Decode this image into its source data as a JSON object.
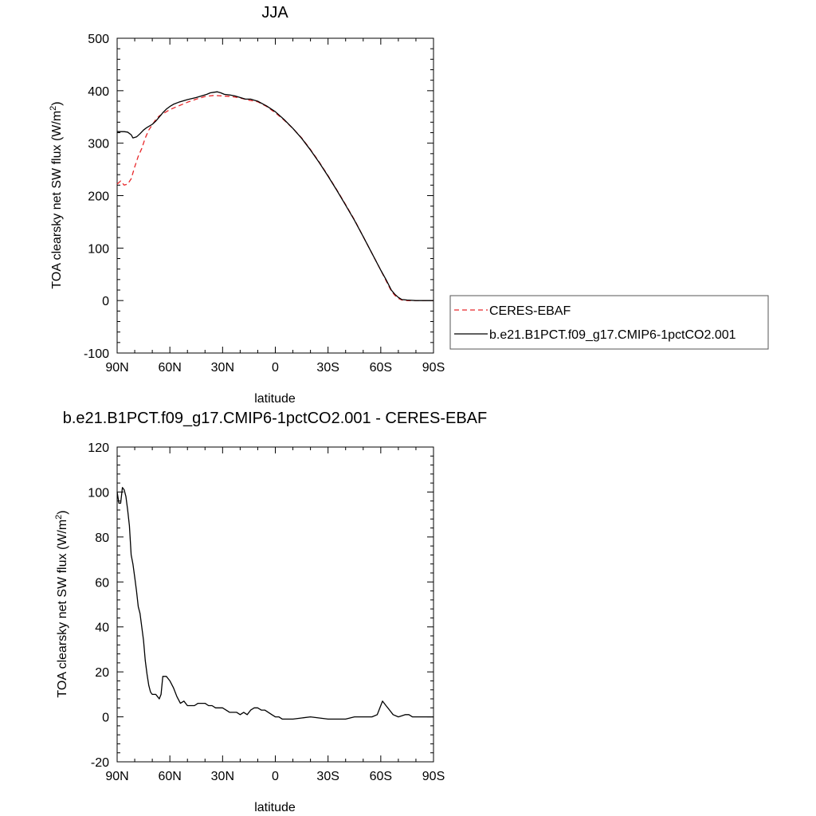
{
  "chart_data": [
    {
      "type": "line",
      "title": "JJA",
      "xlabel": "latitude",
      "ylabel": "TOA clearsky net SW flux (W/m²)",
      "ylabel_main": "TOA clearsky net SW flux (W/m",
      "ylabel_sup": "2",
      "ylabel_end": ")",
      "xlim": [
        90,
        -90
      ],
      "ylim": [
        -100,
        500
      ],
      "xticks": [
        {
          "value": 90,
          "label": "90N"
        },
        {
          "value": 60,
          "label": "60N"
        },
        {
          "value": 30,
          "label": "30N"
        },
        {
          "value": 0,
          "label": "0"
        },
        {
          "value": -30,
          "label": "30S"
        },
        {
          "value": -60,
          "label": "60S"
        },
        {
          "value": -90,
          "label": "90S"
        }
      ],
      "yticks": [
        {
          "value": 500,
          "label": "500"
        },
        {
          "value": 400,
          "label": "400"
        },
        {
          "value": 300,
          "label": "300"
        },
        {
          "value": 200,
          "label": "200"
        },
        {
          "value": 100,
          "label": "100"
        },
        {
          "value": 0,
          "label": "0"
        },
        {
          "value": -100,
          "label": "-100"
        }
      ],
      "legend": {
        "placement": "right",
        "entries": [
          {
            "label": "CERES-EBAF",
            "color": "#e8272a",
            "dash": "dashed"
          },
          {
            "label": "b.e21.B1PCT.f09_g17.CMIP6-1pctCO2.001",
            "color": "#000000",
            "dash": "solid"
          }
        ]
      },
      "series": [
        {
          "name": "CERES-EBAF",
          "color": "#e8272a",
          "style": "dashed",
          "points": [
            [
              90,
              222
            ],
            [
              88,
              228
            ],
            [
              86,
              220
            ],
            [
              84,
              222
            ],
            [
              82,
              232
            ],
            [
              80,
              255
            ],
            [
              78,
              275
            ],
            [
              76,
              290
            ],
            [
              74,
              310
            ],
            [
              72,
              325
            ],
            [
              70,
              335
            ],
            [
              68,
              345
            ],
            [
              66,
              352
            ],
            [
              64,
              356
            ],
            [
              62,
              360
            ],
            [
              60,
              364
            ],
            [
              55,
              371
            ],
            [
              50,
              378
            ],
            [
              45,
              384
            ],
            [
              40,
              389
            ],
            [
              35,
              391
            ],
            [
              30,
              390
            ],
            [
              25,
              389
            ],
            [
              20,
              386
            ],
            [
              15,
              382
            ],
            [
              10,
              379
            ],
            [
              5,
              370
            ],
            [
              0,
              358
            ],
            [
              -5,
              344
            ],
            [
              -10,
              328
            ],
            [
              -15,
              310
            ],
            [
              -20,
              288
            ],
            [
              -25,
              264
            ],
            [
              -30,
              238
            ],
            [
              -35,
              211
            ],
            [
              -40,
              183
            ],
            [
              -45,
              154
            ],
            [
              -50,
              122
            ],
            [
              -55,
              90
            ],
            [
              -60,
              58
            ],
            [
              -63,
              38
            ],
            [
              -66,
              18
            ],
            [
              -68,
              10
            ],
            [
              -70,
              4
            ],
            [
              -72,
              1
            ],
            [
              -75,
              0
            ],
            [
              -80,
              0
            ],
            [
              -85,
              0
            ],
            [
              -90,
              0
            ]
          ]
        },
        {
          "name": "b.e21.B1PCT.f09_g17.CMIP6-1pctCO2.001",
          "color": "#000000",
          "style": "solid",
          "points": [
            [
              90,
              322
            ],
            [
              86,
              322
            ],
            [
              84,
              321
            ],
            [
              82,
              316
            ],
            [
              81,
              310
            ],
            [
              79,
              312
            ],
            [
              77,
              318
            ],
            [
              75,
              325
            ],
            [
              73,
              330
            ],
            [
              70,
              336
            ],
            [
              68,
              342
            ],
            [
              66,
              350
            ],
            [
              64,
              358
            ],
            [
              62,
              365
            ],
            [
              60,
              370
            ],
            [
              58,
              374
            ],
            [
              55,
              378
            ],
            [
              50,
              383
            ],
            [
              45,
              387
            ],
            [
              42,
              390
            ],
            [
              39,
              393
            ],
            [
              37,
              396
            ],
            [
              35,
              397
            ],
            [
              33,
              398
            ],
            [
              31,
              396
            ],
            [
              29,
              393
            ],
            [
              26,
              392
            ],
            [
              23,
              390
            ],
            [
              20,
              387
            ],
            [
              17,
              384
            ],
            [
              14,
              384
            ],
            [
              12,
              382
            ],
            [
              10,
              380
            ],
            [
              5,
              371
            ],
            [
              0,
              360
            ],
            [
              -5,
              345
            ],
            [
              -10,
              328
            ],
            [
              -15,
              309
            ],
            [
              -20,
              287
            ],
            [
              -25,
              263
            ],
            [
              -30,
              237
            ],
            [
              -35,
              210
            ],
            [
              -40,
              182
            ],
            [
              -45,
              153
            ],
            [
              -50,
              122
            ],
            [
              -55,
              90
            ],
            [
              -60,
              58
            ],
            [
              -63,
              40
            ],
            [
              -66,
              20
            ],
            [
              -68,
              12
            ],
            [
              -70,
              6
            ],
            [
              -72,
              2
            ],
            [
              -75,
              1
            ],
            [
              -80,
              0
            ],
            [
              -85,
              0
            ],
            [
              -90,
              0
            ]
          ]
        }
      ]
    },
    {
      "type": "line",
      "title": "b.e21.B1PCT.f09_g17.CMIP6-1pctCO2.001 - CERES-EBAF",
      "xlabel": "latitude",
      "ylabel": "TOA clearsky net SW flux (W/m²)",
      "ylabel_main": "TOA clearsky net SW flux (W/m",
      "ylabel_sup": "2",
      "ylabel_end": ")",
      "xlim": [
        90,
        -90
      ],
      "ylim": [
        -20,
        120
      ],
      "xticks": [
        {
          "value": 90,
          "label": "90N"
        },
        {
          "value": 60,
          "label": "60N"
        },
        {
          "value": 30,
          "label": "30N"
        },
        {
          "value": 0,
          "label": "0"
        },
        {
          "value": -30,
          "label": "30S"
        },
        {
          "value": -60,
          "label": "60S"
        },
        {
          "value": -90,
          "label": "90S"
        }
      ],
      "yticks": [
        {
          "value": 120,
          "label": "120"
        },
        {
          "value": 100,
          "label": "100"
        },
        {
          "value": 80,
          "label": "80"
        },
        {
          "value": 60,
          "label": "60"
        },
        {
          "value": 40,
          "label": "40"
        },
        {
          "value": 20,
          "label": "20"
        },
        {
          "value": 0,
          "label": "0"
        },
        {
          "value": -20,
          "label": "-20"
        }
      ],
      "series": [
        {
          "color": "#000000",
          "style": "solid",
          "points": [
            [
              90,
              100
            ],
            [
              89,
              95
            ],
            [
              88,
              95
            ],
            [
              87,
              102
            ],
            [
              86,
              101
            ],
            [
              85,
              98
            ],
            [
              84,
              92
            ],
            [
              83,
              85
            ],
            [
              82,
              72
            ],
            [
              81,
              68
            ],
            [
              80,
              62
            ],
            [
              79,
              56
            ],
            [
              78,
              49
            ],
            [
              77,
              46
            ],
            [
              76,
              40
            ],
            [
              75,
              34
            ],
            [
              74,
              25
            ],
            [
              73,
              19
            ],
            [
              72,
              14
            ],
            [
              71,
              11
            ],
            [
              70,
              10
            ],
            [
              68,
              10
            ],
            [
              67,
              9
            ],
            [
              66,
              8
            ],
            [
              65,
              10
            ],
            [
              64,
              18
            ],
            [
              62,
              18
            ],
            [
              61,
              17
            ],
            [
              60,
              16
            ],
            [
              58,
              13
            ],
            [
              56,
              9
            ],
            [
              54,
              6
            ],
            [
              52,
              7
            ],
            [
              50,
              5
            ],
            [
              48,
              5
            ],
            [
              46,
              5
            ],
            [
              44,
              6
            ],
            [
              42,
              6
            ],
            [
              40,
              6
            ],
            [
              38,
              5
            ],
            [
              36,
              5
            ],
            [
              34,
              4
            ],
            [
              32,
              4
            ],
            [
              30,
              4
            ],
            [
              28,
              3
            ],
            [
              26,
              2
            ],
            [
              24,
              2
            ],
            [
              22,
              2
            ],
            [
              20,
              1
            ],
            [
              18,
              2
            ],
            [
              16,
              1
            ],
            [
              14,
              3
            ],
            [
              12,
              4
            ],
            [
              10,
              4
            ],
            [
              8,
              3
            ],
            [
              6,
              3
            ],
            [
              4,
              2
            ],
            [
              2,
              1
            ],
            [
              0,
              0
            ],
            [
              -2,
              0
            ],
            [
              -4,
              -1
            ],
            [
              -6,
              -1
            ],
            [
              -10,
              -1
            ],
            [
              -15,
              -0.5
            ],
            [
              -20,
              0
            ],
            [
              -25,
              -0.5
            ],
            [
              -30,
              -1
            ],
            [
              -35,
              -1
            ],
            [
              -40,
              -1
            ],
            [
              -45,
              0
            ],
            [
              -50,
              0
            ],
            [
              -55,
              0
            ],
            [
              -58,
              1
            ],
            [
              -60,
              5
            ],
            [
              -61,
              7
            ],
            [
              -62,
              6
            ],
            [
              -63,
              5
            ],
            [
              -65,
              3
            ],
            [
              -67,
              1
            ],
            [
              -70,
              0
            ],
            [
              -72,
              0.5
            ],
            [
              -74,
              1
            ],
            [
              -76,
              1
            ],
            [
              -78,
              0
            ],
            [
              -80,
              0
            ],
            [
              -85,
              0
            ],
            [
              -90,
              0
            ]
          ]
        }
      ]
    }
  ]
}
